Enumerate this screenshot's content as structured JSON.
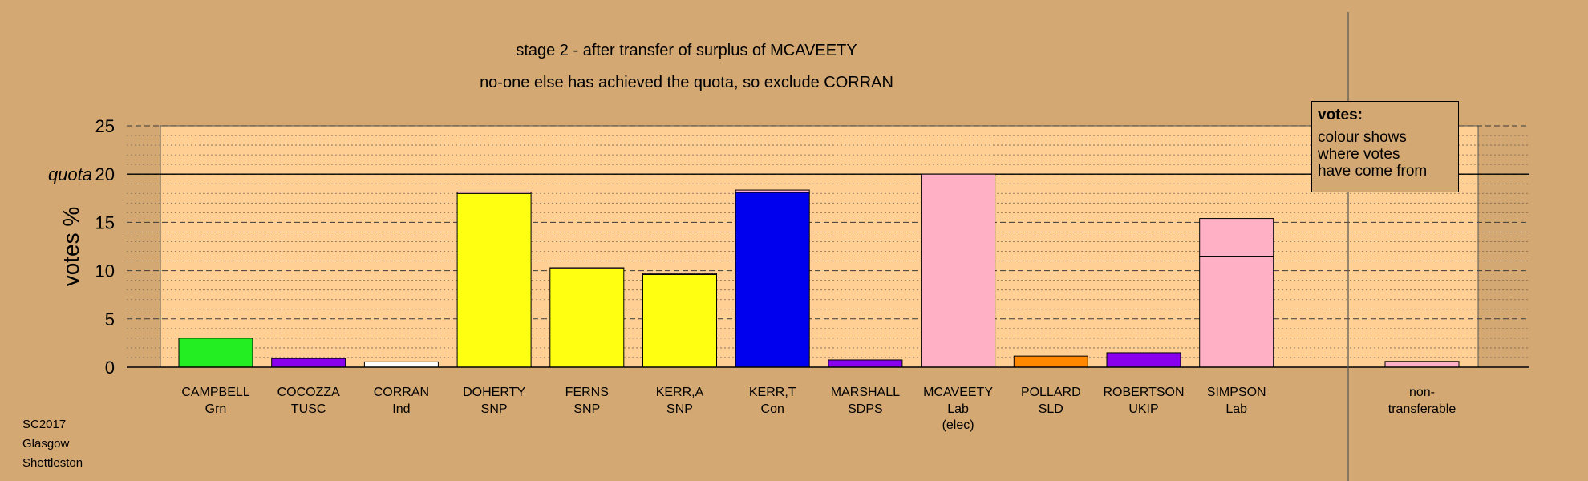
{
  "title_line1": "stage 2 - after transfer of surplus of MCAVEETY",
  "title_line2": "no-one else has achieved the quota, so exclude CORRAN",
  "legend": {
    "title": "votes:",
    "line1": "colour shows",
    "line2": "where votes",
    "line3": "have come from"
  },
  "footer": {
    "line1": "SC2017",
    "line2": "Glasgow",
    "line3": "Shettleston"
  },
  "colors": {
    "background": "#d4a872",
    "plot_area": "#ffcf94",
    "quota_line": "#000000"
  },
  "chart_data": {
    "type": "bar",
    "ylabel": "votes %",
    "ylim": [
      0,
      25
    ],
    "yticks": [
      0,
      5,
      10,
      15,
      20,
      25
    ],
    "quota": 20,
    "quota_label": "quota",
    "grid": true,
    "legend_position": "top-right",
    "candidates": [
      {
        "name": "CAMPBELL",
        "party": "Grn",
        "extra": "",
        "segments": [
          {
            "value": 3.0,
            "color": "#22ee22"
          }
        ]
      },
      {
        "name": "COCOZZA",
        "party": "TUSC",
        "extra": "",
        "segments": [
          {
            "value": 0.9,
            "color": "#8800ee"
          }
        ]
      },
      {
        "name": "CORRAN",
        "party": "Ind",
        "extra": "",
        "segments": [
          {
            "value": 0.55,
            "color": "#ffffff"
          }
        ]
      },
      {
        "name": "DOHERTY",
        "party": "SNP",
        "extra": "",
        "segments": [
          {
            "value": 18.0,
            "color": "#ffff11"
          },
          {
            "value": 0.15,
            "color": "#ffb0c4"
          }
        ]
      },
      {
        "name": "FERNS",
        "party": "SNP",
        "extra": "",
        "segments": [
          {
            "value": 10.2,
            "color": "#ffff11"
          },
          {
            "value": 0.1,
            "color": "#ffb0c4"
          }
        ]
      },
      {
        "name": "KERR,A",
        "party": "SNP",
        "extra": "",
        "segments": [
          {
            "value": 9.6,
            "color": "#ffff11"
          },
          {
            "value": 0.1,
            "color": "#ffb0c4"
          }
        ]
      },
      {
        "name": "KERR,T",
        "party": "Con",
        "extra": "",
        "segments": [
          {
            "value": 18.1,
            "color": "#0000ee"
          },
          {
            "value": 0.25,
            "color": "#ffb0c4"
          }
        ]
      },
      {
        "name": "MARSHALL",
        "party": "SDPS",
        "extra": "",
        "segments": [
          {
            "value": 0.75,
            "color": "#8800ee"
          }
        ]
      },
      {
        "name": "MCAVEETY",
        "party": "Lab",
        "extra": "(elec)",
        "segments": [
          {
            "value": 20.0,
            "color": "#ffb0c4"
          }
        ]
      },
      {
        "name": "POLLARD",
        "party": "SLD",
        "extra": "",
        "segments": [
          {
            "value": 1.15,
            "color": "#ff8800"
          }
        ]
      },
      {
        "name": "ROBERTSON",
        "party": "UKIP",
        "extra": "",
        "segments": [
          {
            "value": 1.5,
            "color": "#8800ee"
          }
        ]
      },
      {
        "name": "SIMPSON",
        "party": "Lab",
        "extra": "",
        "segments": [
          {
            "value": 11.5,
            "color": "#ffb0c4"
          },
          {
            "value": 3.9,
            "color": "#ffb0c4"
          }
        ]
      }
    ],
    "nontransferable": {
      "line1": "non-",
      "line2": "transferable",
      "value": 0.6,
      "color": "#ffb0c4"
    }
  }
}
